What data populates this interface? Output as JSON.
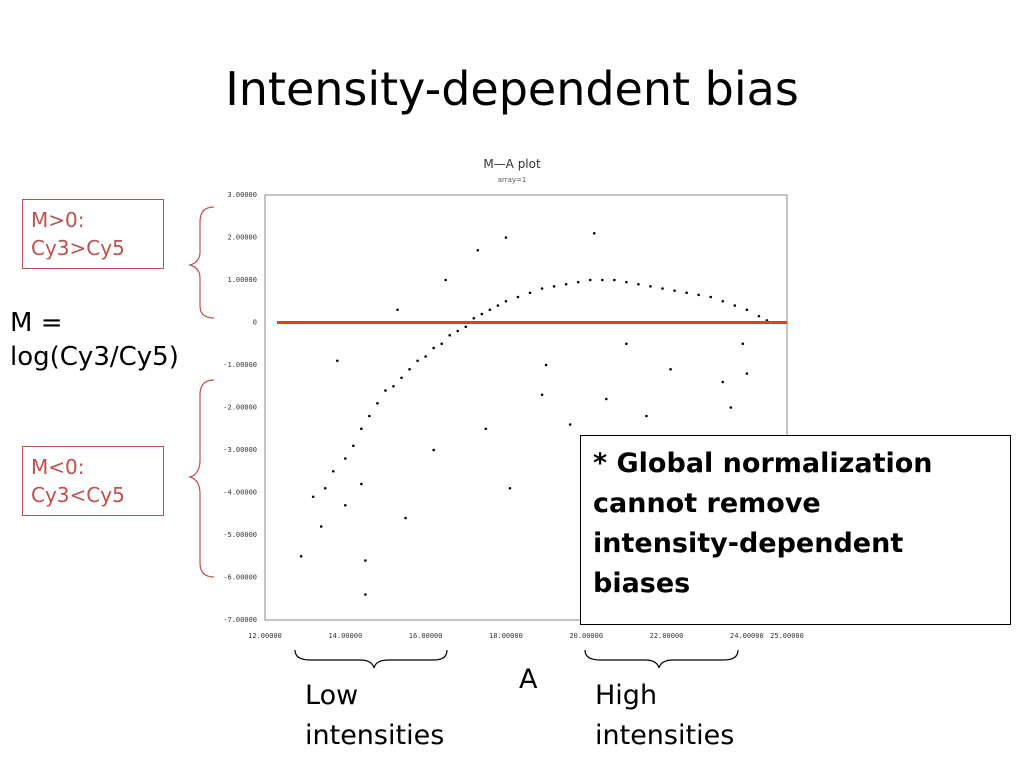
{
  "slide": {
    "title": "Intensity-dependent bias",
    "pos_label": [
      "M>0:",
      "Cy3>Cy5"
    ],
    "neg_label": [
      "M<0:",
      "Cy3<Cy5"
    ],
    "m_definition": [
      "M =",
      "log(Cy3/Cy5)"
    ],
    "note_lines": [
      "* Global normalization",
      "cannot remove",
      "intensity-dependent",
      "biases"
    ],
    "low_caption": [
      "Low",
      "intensities"
    ],
    "high_caption": [
      "High",
      "intensities"
    ],
    "x_caption": "A"
  },
  "colors": {
    "zero_line": "#e0421a",
    "label_red": "#c0504d",
    "points": "#000000"
  },
  "chart_data": {
    "type": "scatter",
    "title": "M—A plot",
    "subtitle": "array=1",
    "xlabel": "A",
    "ylabel": "M",
    "xlim": [
      12,
      25
    ],
    "ylim": [
      -7,
      3
    ],
    "x_ticks": [
      "12.00000",
      "14.00000",
      "16.00000",
      "18.00000",
      "20.00000",
      "22.00000",
      "24.00000",
      "25.00000"
    ],
    "x_tick_values": [
      12,
      14,
      16,
      18,
      20,
      22,
      24,
      25
    ],
    "y_ticks": [
      "3.00000",
      "2.00000",
      "1.00000",
      "0",
      "-1.00000",
      "-2.00000",
      "-3.00000",
      "-4.00000",
      "-5.00000",
      "-6.00000",
      "-7.00000"
    ],
    "y_tick_values": [
      3,
      2,
      1,
      0,
      -1,
      -2,
      -3,
      -4,
      -5,
      -6,
      -7
    ],
    "reference_line_y": 0,
    "points": [
      [
        13.2,
        -4.1
      ],
      [
        13.5,
        -3.9
      ],
      [
        13.7,
        -3.5
      ],
      [
        14.0,
        -3.2
      ],
      [
        14.2,
        -2.9
      ],
      [
        14.4,
        -2.5
      ],
      [
        14.6,
        -2.2
      ],
      [
        14.8,
        -1.9
      ],
      [
        15.0,
        -1.6
      ],
      [
        15.2,
        -1.5
      ],
      [
        15.4,
        -1.3
      ],
      [
        15.6,
        -1.1
      ],
      [
        15.8,
        -0.9
      ],
      [
        16.0,
        -0.8
      ],
      [
        16.2,
        -0.6
      ],
      [
        16.4,
        -0.5
      ],
      [
        16.6,
        -0.3
      ],
      [
        16.8,
        -0.2
      ],
      [
        17.0,
        -0.1
      ],
      [
        17.2,
        0.1
      ],
      [
        17.4,
        0.2
      ],
      [
        17.6,
        0.3
      ],
      [
        17.8,
        0.4
      ],
      [
        18.0,
        0.5
      ],
      [
        18.3,
        0.6
      ],
      [
        18.6,
        0.7
      ],
      [
        18.9,
        0.8
      ],
      [
        19.2,
        0.85
      ],
      [
        19.5,
        0.9
      ],
      [
        19.8,
        0.95
      ],
      [
        20.1,
        1.0
      ],
      [
        20.4,
        1.0
      ],
      [
        20.7,
        1.0
      ],
      [
        21.0,
        0.95
      ],
      [
        21.3,
        0.9
      ],
      [
        21.6,
        0.85
      ],
      [
        21.9,
        0.8
      ],
      [
        22.2,
        0.75
      ],
      [
        22.5,
        0.7
      ],
      [
        22.8,
        0.65
      ],
      [
        23.1,
        0.6
      ],
      [
        23.4,
        0.5
      ],
      [
        23.7,
        0.4
      ],
      [
        24.0,
        0.3
      ],
      [
        24.3,
        0.15
      ],
      [
        24.5,
        0.05
      ],
      [
        12.9,
        -5.5
      ],
      [
        13.4,
        -4.8
      ],
      [
        14.0,
        -4.3
      ],
      [
        14.5,
        -5.6
      ],
      [
        14.5,
        -6.4
      ],
      [
        14.4,
        -3.8
      ],
      [
        15.5,
        -4.6
      ],
      [
        18.1,
        -3.9
      ],
      [
        18.0,
        2.0
      ],
      [
        20.2,
        2.1
      ],
      [
        16.5,
        1.0
      ],
      [
        17.3,
        1.7
      ],
      [
        15.3,
        0.3
      ],
      [
        13.8,
        -0.9
      ],
      [
        16.2,
        -3.0
      ],
      [
        17.5,
        -2.5
      ],
      [
        19.0,
        -1.0
      ],
      [
        20.5,
        -1.8
      ],
      [
        21.5,
        -2.2
      ],
      [
        22.8,
        -3.0
      ],
      [
        23.6,
        -2.0
      ],
      [
        23.4,
        -1.4
      ],
      [
        24.0,
        -1.2
      ],
      [
        21.0,
        -0.5
      ],
      [
        22.1,
        -1.1
      ],
      [
        19.6,
        -2.4
      ],
      [
        18.9,
        -1.7
      ],
      [
        23.9,
        -0.5
      ]
    ]
  }
}
